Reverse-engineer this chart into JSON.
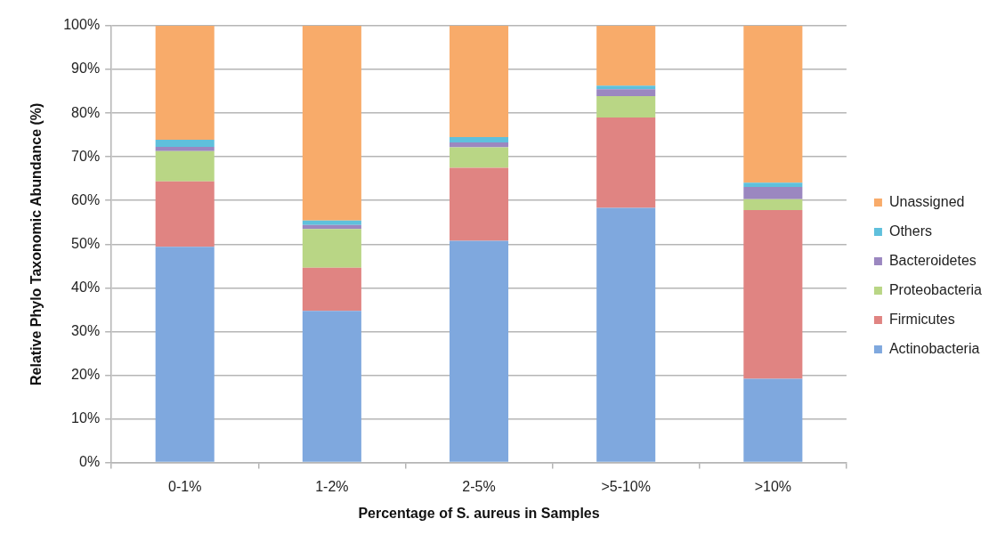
{
  "chart_data": {
    "type": "bar",
    "stacked": true,
    "xlabel": "Percentage of S. aureus in Samples",
    "ylabel": "Relative Phylo Taxonomic Abundance (%)",
    "categories": [
      "0-1%",
      "1-2%",
      "2-5%",
      ">5-10%",
      ">10%"
    ],
    "series": [
      {
        "name": "Actinobacteria",
        "color": "#7fa8de",
        "values": [
          49.4,
          34.7,
          50.8,
          58.3,
          19.2
        ]
      },
      {
        "name": "Firmicutes",
        "color": "#e08482",
        "values": [
          15.0,
          9.9,
          16.7,
          20.7,
          38.6
        ]
      },
      {
        "name": "Proteobacteria",
        "color": "#b9d685",
        "values": [
          6.9,
          8.9,
          4.7,
          4.9,
          2.5
        ]
      },
      {
        "name": "Bacteroidetes",
        "color": "#9b87c0",
        "values": [
          1.0,
          0.9,
          1.1,
          1.6,
          2.8
        ]
      },
      {
        "name": "Others",
        "color": "#5fc0dc",
        "values": [
          1.6,
          1.0,
          1.2,
          0.8,
          1.0
        ]
      },
      {
        "name": "Unassigned",
        "color": "#f8ab6a",
        "values": [
          26.1,
          44.6,
          25.5,
          13.7,
          35.9
        ]
      }
    ],
    "ylim": [
      0,
      100
    ],
    "yticks": [
      {
        "value": 0,
        "label": "0%"
      },
      {
        "value": 10,
        "label": "10%"
      },
      {
        "value": 20,
        "label": "20%"
      },
      {
        "value": 30,
        "label": "30%"
      },
      {
        "value": 40,
        "label": "40%"
      },
      {
        "value": 50,
        "label": "50%"
      },
      {
        "value": 60,
        "label": "60%"
      },
      {
        "value": 70,
        "label": "70%"
      },
      {
        "value": 80,
        "label": "80%"
      },
      {
        "value": 90,
        "label": "90%"
      },
      {
        "value": 100,
        "label": "100%"
      }
    ],
    "grid": "y",
    "legend": "right"
  }
}
